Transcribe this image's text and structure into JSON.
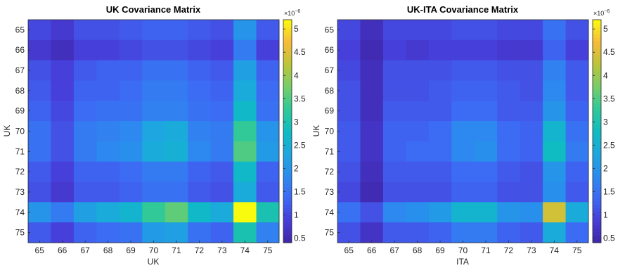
{
  "chart_data": [
    {
      "type": "heatmap",
      "title": "UK Covariance Matrix",
      "xlabel": "UK",
      "ylabel": "UK",
      "x_categories": [
        "65",
        "66",
        "67",
        "68",
        "69",
        "70",
        "71",
        "72",
        "73",
        "74",
        "75"
      ],
      "y_categories": [
        "65",
        "66",
        "67",
        "68",
        "69",
        "70",
        "71",
        "72",
        "73",
        "74",
        "75"
      ],
      "colorbar": {
        "ticks": [
          "0.5",
          "1",
          "1.5",
          "2",
          "2.5",
          "3",
          "3.5",
          "4",
          "4.5",
          "5"
        ],
        "multiplier_base": "×10",
        "multiplier_exp": "−6",
        "range": [
          0.4,
          5.2
        ],
        "colormap": "parula"
      },
      "values": [
        [
          1.0,
          0.8,
          1.1,
          1.1,
          1.2,
          1.3,
          1.3,
          1.2,
          1.1,
          2.0,
          1.2
        ],
        [
          0.8,
          0.6,
          0.9,
          0.9,
          1.0,
          1.1,
          1.1,
          1.0,
          0.9,
          1.6,
          0.9
        ],
        [
          1.1,
          0.9,
          1.2,
          1.3,
          1.3,
          1.5,
          1.5,
          1.3,
          1.2,
          2.2,
          1.3
        ],
        [
          1.2,
          0.9,
          1.3,
          1.3,
          1.4,
          1.6,
          1.6,
          1.4,
          1.3,
          2.4,
          1.4
        ],
        [
          1.3,
          1.0,
          1.4,
          1.5,
          1.5,
          1.7,
          1.7,
          1.5,
          1.4,
          2.7,
          1.5
        ],
        [
          1.5,
          1.1,
          1.6,
          1.7,
          1.8,
          2.3,
          2.4,
          1.7,
          1.6,
          3.3,
          2.0
        ],
        [
          1.5,
          1.1,
          1.6,
          1.8,
          1.9,
          2.4,
          2.5,
          1.8,
          1.6,
          3.5,
          2.1
        ],
        [
          1.2,
          0.9,
          1.3,
          1.3,
          1.4,
          1.6,
          1.6,
          1.3,
          1.2,
          2.7,
          1.3
        ],
        [
          1.1,
          0.8,
          1.2,
          1.2,
          1.3,
          1.5,
          1.5,
          1.2,
          1.1,
          2.4,
          1.2
        ],
        [
          2.0,
          1.6,
          2.2,
          2.4,
          2.6,
          3.3,
          3.6,
          2.7,
          2.4,
          5.2,
          3.0
        ],
        [
          1.2,
          0.9,
          1.3,
          1.4,
          1.5,
          2.1,
          2.2,
          1.5,
          1.3,
          3.0,
          1.7
        ]
      ]
    },
    {
      "type": "heatmap",
      "title": "UK-ITA Covariance Matrix",
      "xlabel": "ITA",
      "ylabel": "UK",
      "x_categories": [
        "65",
        "66",
        "67",
        "68",
        "69",
        "70",
        "71",
        "72",
        "73",
        "74",
        "75"
      ],
      "y_categories": [
        "65",
        "66",
        "67",
        "68",
        "69",
        "70",
        "71",
        "72",
        "73",
        "74",
        "75"
      ],
      "colorbar": {
        "ticks": [
          "0.5",
          "1",
          "1.5",
          "2",
          "2.5",
          "3",
          "3.5",
          "4",
          "4.5",
          "5"
        ],
        "multiplier_base": "×10",
        "multiplier_exp": "−6",
        "range": [
          0.4,
          5.2
        ],
        "colormap": "parula"
      },
      "values": [
        [
          1.0,
          0.6,
          1.0,
          1.0,
          1.0,
          1.1,
          1.1,
          1.0,
          1.0,
          1.5,
          1.1
        ],
        [
          0.9,
          0.5,
          0.9,
          0.8,
          0.9,
          0.9,
          0.9,
          0.8,
          0.8,
          1.3,
          0.9
        ],
        [
          1.0,
          0.6,
          1.1,
          1.1,
          1.1,
          1.2,
          1.2,
          1.1,
          1.1,
          1.7,
          1.2
        ],
        [
          1.1,
          0.6,
          1.1,
          1.1,
          1.2,
          1.3,
          1.3,
          1.2,
          1.1,
          1.8,
          1.2
        ],
        [
          1.1,
          0.6,
          1.2,
          1.2,
          1.2,
          1.4,
          1.4,
          1.2,
          1.2,
          2.0,
          1.3
        ],
        [
          1.2,
          0.7,
          1.3,
          1.3,
          1.4,
          1.8,
          1.8,
          1.4,
          1.3,
          2.6,
          1.5
        ],
        [
          1.2,
          0.7,
          1.3,
          1.4,
          1.4,
          1.8,
          1.9,
          1.4,
          1.3,
          2.8,
          1.6
        ],
        [
          1.1,
          0.6,
          1.2,
          1.2,
          1.2,
          1.4,
          1.4,
          1.2,
          1.1,
          2.0,
          1.3
        ],
        [
          1.0,
          0.5,
          1.1,
          1.1,
          1.1,
          1.3,
          1.3,
          1.1,
          1.1,
          1.9,
          1.2
        ],
        [
          1.5,
          1.1,
          1.8,
          1.9,
          2.1,
          2.6,
          2.6,
          2.0,
          1.9,
          4.4,
          2.4
        ],
        [
          1.1,
          0.7,
          1.2,
          1.2,
          1.3,
          1.6,
          1.6,
          1.3,
          1.2,
          2.4,
          1.4
        ]
      ]
    }
  ]
}
